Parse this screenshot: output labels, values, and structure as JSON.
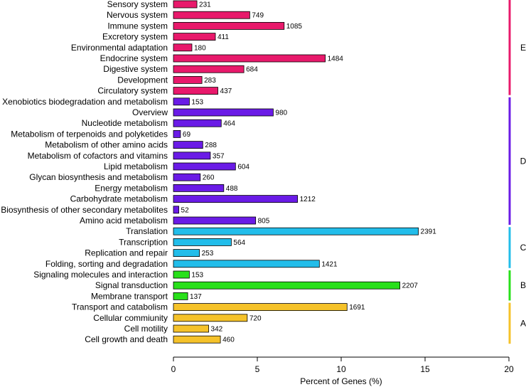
{
  "chart_data": {
    "type": "bar",
    "orientation": "horizontal",
    "xlabel": "Percent of Genes (%)",
    "xlim": [
      0,
      20
    ],
    "xticks": [
      0,
      5,
      10,
      15,
      20
    ],
    "grid": false,
    "groups": [
      {
        "name": "E",
        "color": "#e8196b"
      },
      {
        "name": "D",
        "color": "#6a1be6"
      },
      {
        "name": "C",
        "color": "#22bdea"
      },
      {
        "name": "B",
        "color": "#28e01a"
      },
      {
        "name": "A",
        "color": "#f5c22a"
      }
    ],
    "bars": [
      {
        "label": "Sensory system",
        "value": 1.4,
        "count": "231",
        "group": "E"
      },
      {
        "label": "Nervous system",
        "value": 4.55,
        "count": "749",
        "group": "E"
      },
      {
        "label": "Immune system",
        "value": 6.6,
        "count": "1085",
        "group": "E"
      },
      {
        "label": "Excretory system",
        "value": 2.5,
        "count": "411",
        "group": "E"
      },
      {
        "label": "Environmental adaptation",
        "value": 1.1,
        "count": "180",
        "group": "E"
      },
      {
        "label": "Endocrine system",
        "value": 9.05,
        "count": "1484",
        "group": "E"
      },
      {
        "label": "Digestive system",
        "value": 4.2,
        "count": "684",
        "group": "E"
      },
      {
        "label": "Development",
        "value": 1.7,
        "count": "283",
        "group": "E"
      },
      {
        "label": "Circulatory system",
        "value": 2.65,
        "count": "437",
        "group": "E"
      },
      {
        "label": "Xenobiotics biodegradation and metabolism",
        "value": 0.95,
        "count": "153",
        "group": "D"
      },
      {
        "label": "Overview",
        "value": 5.95,
        "count": "980",
        "group": "D"
      },
      {
        "label": "Nucleotide metabolism",
        "value": 2.85,
        "count": "464",
        "group": "D"
      },
      {
        "label": "Metabolism of terpenoids and polyketides",
        "value": 0.42,
        "count": "69",
        "group": "D"
      },
      {
        "label": "Metabolism of other amino acids",
        "value": 1.75,
        "count": "288",
        "group": "D"
      },
      {
        "label": "Metabolism of cofactors and vitamins",
        "value": 2.2,
        "count": "357",
        "group": "D"
      },
      {
        "label": "Lipid metabolism",
        "value": 3.7,
        "count": "604",
        "group": "D"
      },
      {
        "label": "Glycan biosynthesis and metabolism",
        "value": 1.6,
        "count": "260",
        "group": "D"
      },
      {
        "label": "Energy metabolism",
        "value": 3.0,
        "count": "488",
        "group": "D"
      },
      {
        "label": "Carbohydrate metabolism",
        "value": 7.4,
        "count": "1212",
        "group": "D"
      },
      {
        "label": "Biosynthesis of other secondary metabolites",
        "value": 0.32,
        "count": "52",
        "group": "D"
      },
      {
        "label": "Amino acid metabolism",
        "value": 4.9,
        "count": "805",
        "group": "D"
      },
      {
        "label": "Translation",
        "value": 14.6,
        "count": "2391",
        "group": "C"
      },
      {
        "label": "Transcription",
        "value": 3.45,
        "count": "564",
        "group": "C"
      },
      {
        "label": "Replication and repair",
        "value": 1.55,
        "count": "253",
        "group": "C"
      },
      {
        "label": "Folding, sorting and degradation",
        "value": 8.7,
        "count": "1421",
        "group": "C"
      },
      {
        "label": "Signaling molecules and interaction",
        "value": 0.95,
        "count": "153",
        "group": "B"
      },
      {
        "label": "Signal transduction",
        "value": 13.5,
        "count": "2207",
        "group": "B"
      },
      {
        "label": "Membrane transport",
        "value": 0.85,
        "count": "137",
        "group": "B"
      },
      {
        "label": "Transport and catabolism",
        "value": 10.35,
        "count": "1691",
        "group": "A"
      },
      {
        "label": "Cellular commiunity",
        "value": 4.4,
        "count": "720",
        "group": "A"
      },
      {
        "label": "Cell motility",
        "value": 2.1,
        "count": "342",
        "group": "A"
      },
      {
        "label": "Cell growth and death",
        "value": 2.8,
        "count": "460",
        "group": "A"
      }
    ]
  }
}
